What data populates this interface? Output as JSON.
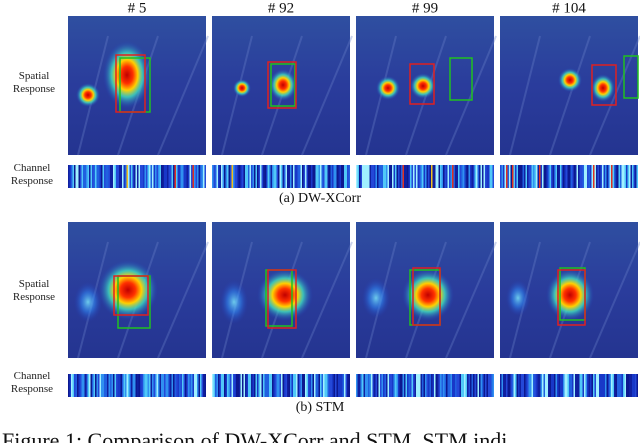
{
  "frames": [
    "# 5",
    "# 92",
    "# 99",
    "# 104"
  ],
  "panels": [
    {
      "row_labels": [
        "Spatial Response",
        "Channel Response"
      ],
      "caption": "(a) DW-XCorr"
    },
    {
      "row_labels": [
        "Spatial Response",
        "Channel Response"
      ],
      "caption": "(b) STM"
    }
  ],
  "figure_caption": "Figure 1: Comparison of DW-XCorr and STM. STM indi"
}
